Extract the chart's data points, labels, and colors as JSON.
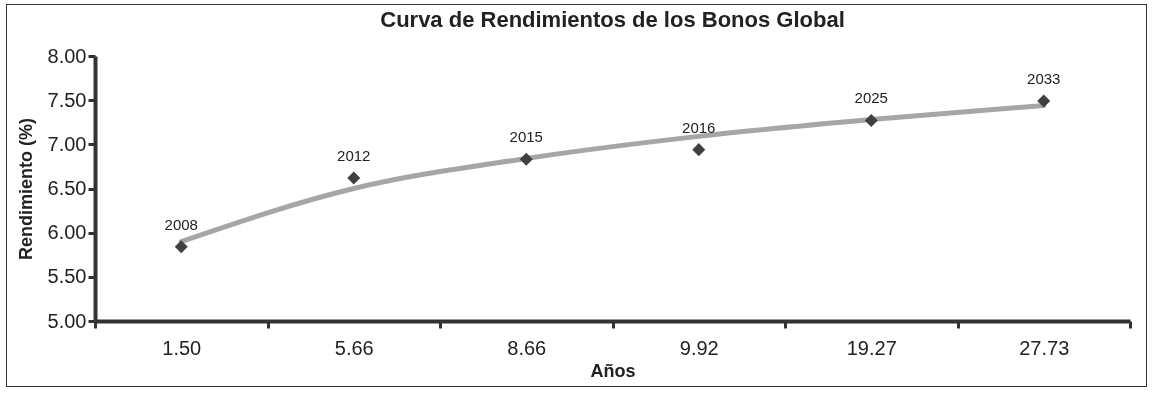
{
  "chart_data": {
    "type": "scatter",
    "title": "Curva de Rendimientos de los Bonos Global",
    "xlabel": "Años",
    "ylabel": "Rendimiento (%)",
    "categories": [
      "1.50",
      "5.66",
      "8.66",
      "9.92",
      "19.27",
      "27.73"
    ],
    "series": [
      {
        "color": "#404040",
        "marker": "diamond",
        "values": [
          5.84,
          6.62,
          6.83,
          6.94,
          7.27,
          7.49
        ]
      },
      {
        "type": "line",
        "color": "#a6a6a6",
        "marker": "none",
        "line_style": "solid",
        "values": [
          5.9,
          6.5,
          6.84,
          7.09,
          7.28,
          7.44
        ]
      }
    ],
    "annotations": [
      {
        "text": "2008",
        "x": "1.50",
        "y": 5.84
      },
      {
        "text": "2012",
        "x": "5.66",
        "y": 6.62
      },
      {
        "text": "2015",
        "x": "8.66",
        "y": 6.83
      },
      {
        "text": "2016",
        "x": "9.92",
        "y": 6.94
      },
      {
        "text": "2025",
        "x": "19.27",
        "y": 7.27
      },
      {
        "text": "2033",
        "x": "27.73",
        "y": 7.49
      }
    ],
    "ylim": [
      5,
      8
    ],
    "yticks": [
      {
        "value": 5,
        "label": "5.00"
      },
      {
        "value": 5.5,
        "label": "5.50"
      },
      {
        "value": 6,
        "label": "6.00"
      },
      {
        "value": 6.5,
        "label": "6.50"
      },
      {
        "value": 7,
        "label": "7.00"
      },
      {
        "value": 7.5,
        "label": "7.50"
      },
      {
        "value": 8,
        "label": "8.00"
      }
    ],
    "grid": false
  }
}
